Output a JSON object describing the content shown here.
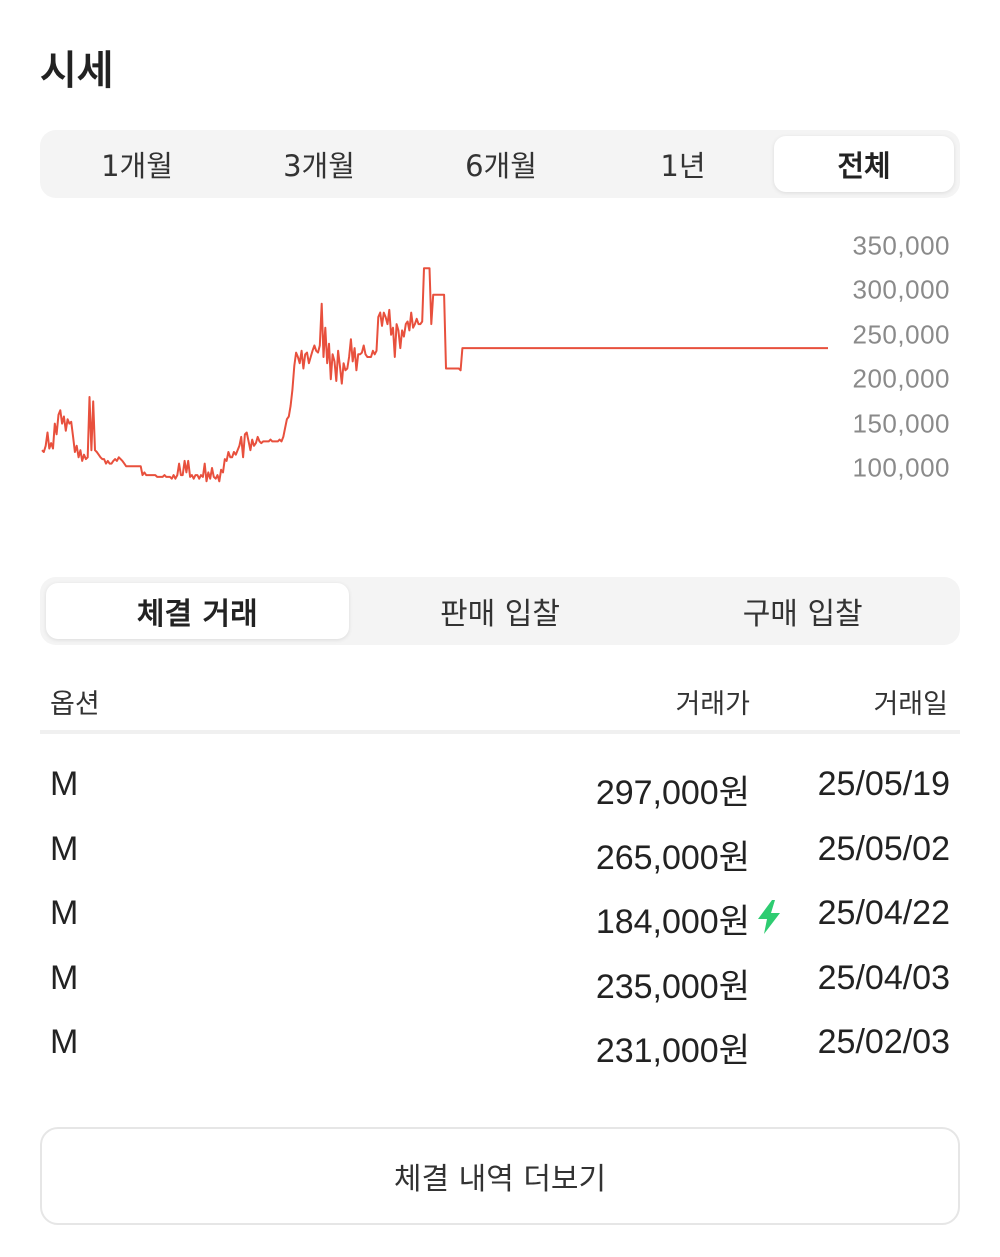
{
  "page": {
    "title": "시세"
  },
  "period_tabs": [
    {
      "label": "1개월",
      "active": false
    },
    {
      "label": "3개월",
      "active": false
    },
    {
      "label": "6개월",
      "active": false
    },
    {
      "label": "1년",
      "active": false
    },
    {
      "label": "전체",
      "active": true
    }
  ],
  "chart_data": {
    "type": "line",
    "color": "#e8503d",
    "y_ticks": [
      "350,000",
      "300,000",
      "250,000",
      "200,000",
      "150,000",
      "100,000"
    ],
    "ylim": [
      50000,
      350000
    ],
    "values": [
      120000,
      118000,
      125000,
      140000,
      122000,
      128000,
      122000,
      150000,
      138000,
      160000,
      165000,
      150000,
      158000,
      142000,
      155000,
      150000,
      152000,
      135000,
      118000,
      125000,
      112000,
      120000,
      108000,
      115000,
      110000,
      112000,
      180000,
      120000,
      175000,
      120000,
      118000,
      115000,
      112000,
      110000,
      110000,
      105000,
      108000,
      105000,
      105000,
      108000,
      110000,
      108000,
      112000,
      110000,
      108000,
      105000,
      102000,
      102000,
      102000,
      102000,
      102000,
      102000,
      102000,
      102000,
      102000,
      92000,
      95000,
      92000,
      92000,
      92000,
      92000,
      92000,
      92000,
      90000,
      90000,
      90000,
      90000,
      92000,
      90000,
      90000,
      90000,
      88000,
      92000,
      88000,
      92000,
      105000,
      92000,
      92000,
      108000,
      95000,
      108000,
      90000,
      92000,
      88000,
      92000,
      92000,
      88000,
      92000,
      90000,
      105000,
      85000,
      95000,
      88000,
      100000,
      90000,
      88000,
      92000,
      85000,
      98000,
      95000,
      110000,
      108000,
      118000,
      112000,
      112000,
      118000,
      115000,
      120000,
      125000,
      135000,
      112000,
      138000,
      140000,
      130000,
      120000,
      132000,
      125000,
      128000,
      135000,
      130000,
      128000,
      130000,
      130000,
      130000,
      130000,
      132000,
      130000,
      130000,
      130000,
      130000,
      132000,
      130000,
      135000,
      145000,
      155000,
      158000,
      170000,
      188000,
      215000,
      230000,
      225000,
      218000,
      232000,
      212000,
      228000,
      230000,
      218000,
      225000,
      232000,
      238000,
      232000,
      230000,
      238000,
      285000,
      225000,
      258000,
      218000,
      240000,
      200000,
      228000,
      220000,
      198000,
      232000,
      215000,
      195000,
      218000,
      210000,
      212000,
      225000,
      245000,
      220000,
      235000,
      210000,
      228000,
      228000,
      230000,
      238000,
      228000,
      225000,
      225000,
      225000,
      232000,
      228000,
      232000,
      270000,
      275000,
      260000,
      275000,
      270000,
      262000,
      278000,
      250000,
      258000,
      225000,
      262000,
      255000,
      235000,
      255000,
      248000,
      262000,
      265000,
      255000,
      275000,
      258000,
      262000,
      268000,
      262000,
      262000,
      265000,
      325000,
      325000,
      325000,
      325000,
      262000,
      295000,
      295000,
      295000,
      295000,
      295000,
      295000,
      295000,
      212000,
      212000,
      212000,
      212000,
      212000,
      212000,
      212000,
      212000,
      210000,
      235000,
      235000,
      235000,
      235000,
      235000,
      235000,
      235000,
      235000,
      235000,
      235000,
      235000,
      235000,
      235000,
      235000,
      235000,
      235000,
      235000,
      235000,
      235000,
      235000,
      235000,
      235000,
      235000,
      235000,
      235000,
      235000,
      235000,
      235000,
      235000,
      235000,
      235000,
      235000,
      235000,
      235000,
      235000,
      235000,
      235000,
      235000,
      235000,
      235000,
      235000,
      235000,
      235000,
      235000,
      235000,
      235000,
      235000,
      235000,
      235000,
      235000,
      235000,
      235000,
      235000,
      235000,
      235000,
      235000,
      235000,
      235000,
      235000,
      235000,
      235000,
      235000,
      235000,
      235000,
      235000,
      235000,
      235000,
      235000,
      235000,
      235000,
      235000,
      235000,
      235000,
      235000,
      235000,
      235000,
      235000,
      235000,
      235000,
      235000,
      235000,
      235000,
      235000,
      235000,
      235000,
      235000,
      235000,
      235000,
      235000,
      235000,
      235000,
      235000,
      235000,
      235000,
      235000,
      235000,
      235000,
      235000,
      235000,
      235000,
      235000,
      235000,
      235000,
      235000,
      235000,
      235000,
      235000,
      235000,
      235000,
      235000,
      235000,
      235000,
      235000,
      235000,
      235000,
      235000,
      235000,
      235000,
      235000,
      235000,
      235000,
      235000,
      235000,
      235000,
      235000,
      235000,
      235000,
      235000,
      235000,
      235000,
      235000,
      235000,
      235000,
      235000,
      235000,
      235000,
      235000,
      235000,
      235000,
      235000,
      235000,
      235000,
      235000,
      235000,
      235000,
      235000,
      235000,
      235000,
      235000,
      235000,
      235000,
      235000,
      235000,
      235000,
      235000,
      235000,
      235000,
      235000,
      235000,
      235000,
      235000,
      235000,
      235000,
      235000,
      235000,
      235000,
      235000,
      235000,
      235000,
      235000,
      235000,
      235000,
      235000,
      235000,
      235000,
      235000,
      235000,
      235000,
      235000,
      235000,
      235000,
      235000,
      235000,
      235000,
      235000,
      235000,
      235000,
      235000,
      235000,
      235000,
      235000,
      235000,
      235000,
      235000,
      235000,
      235000,
      235000,
      235000,
      235000,
      235000,
      235000
    ]
  },
  "trade_tabs": [
    {
      "label": "체결 거래",
      "active": true
    },
    {
      "label": "판매 입찰",
      "active": false
    },
    {
      "label": "구매 입찰",
      "active": false
    }
  ],
  "table": {
    "headers": {
      "option": "옵션",
      "price": "거래가",
      "date": "거래일"
    },
    "rows": [
      {
        "option": "M",
        "price": "297,000원",
        "date": "25/05/19",
        "quick": false
      },
      {
        "option": "M",
        "price": "265,000원",
        "date": "25/05/02",
        "quick": false
      },
      {
        "option": "M",
        "price": "184,000원",
        "date": "25/04/22",
        "quick": true
      },
      {
        "option": "M",
        "price": "235,000원",
        "date": "25/04/03",
        "quick": false
      },
      {
        "option": "M",
        "price": "231,000원",
        "date": "25/02/03",
        "quick": false
      }
    ]
  },
  "quick_icon": {
    "name": "lightning-icon",
    "color": "#2ecc71"
  },
  "more_button": {
    "label": "체결 내역 더보기"
  }
}
